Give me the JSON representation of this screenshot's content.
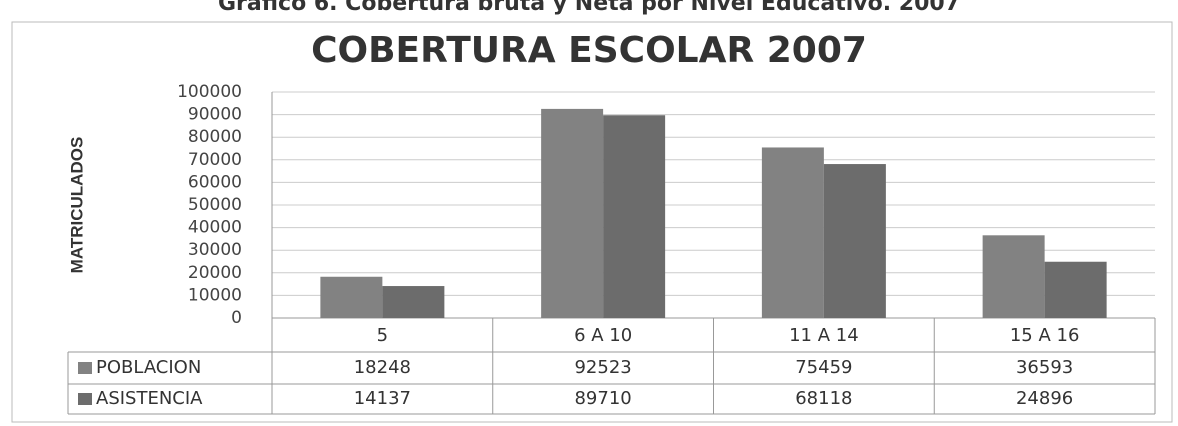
{
  "chart_data": {
    "type": "bar",
    "caption": "Grafico 6. Cobertura bruta y Neta por Nivel Educativo. 2007",
    "title": "COBERTURA ESCOLAR 2007",
    "y_label": "MATRICULADOS",
    "categories": [
      "5",
      "6 A 10",
      "11 A 14",
      "15 A 16"
    ],
    "series": [
      {
        "name": "POBLACION",
        "color": "#828282",
        "values": [
          18248,
          92523,
          75459,
          36593
        ]
      },
      {
        "name": "ASISTENCIA",
        "color": "#6c6c6c",
        "values": [
          14137,
          89710,
          68118,
          24896
        ]
      }
    ],
    "ylim": [
      0,
      100000
    ],
    "yticks": [
      0,
      10000,
      20000,
      30000,
      40000,
      50000,
      60000,
      70000,
      80000,
      90000,
      100000
    ],
    "grid": true
  }
}
